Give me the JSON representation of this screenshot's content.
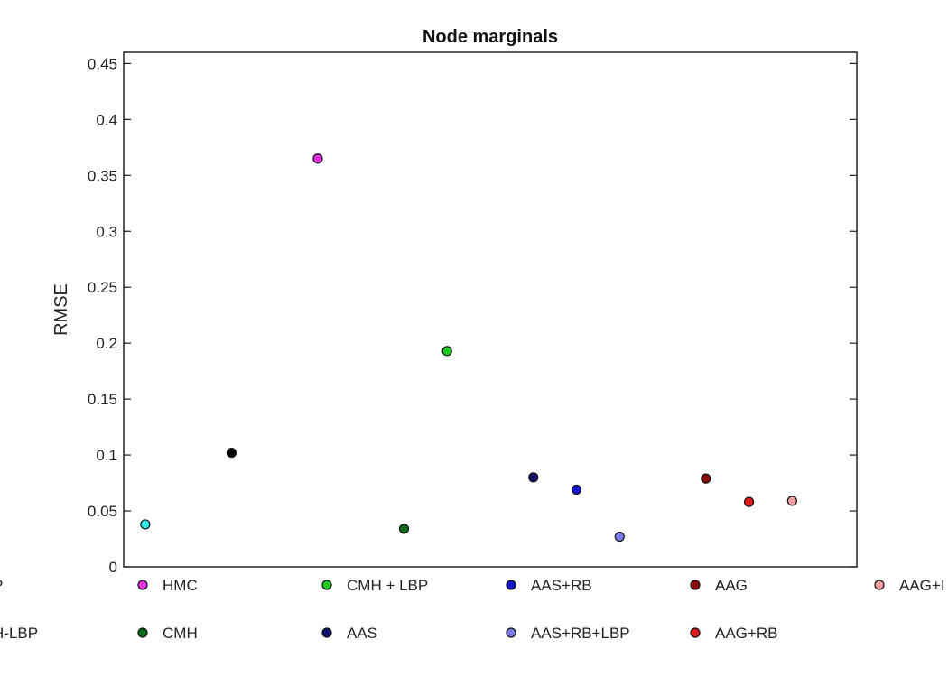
{
  "chart_data": {
    "type": "scatter",
    "title": "Node marginals",
    "xlabel": "",
    "ylabel": "RMSE",
    "ylim": [
      0,
      0.46
    ],
    "xlim": [
      -0.5,
      16.5
    ],
    "grid": false,
    "legend_placement": "bottom, clipped at left and right edges",
    "yticks": [
      "0",
      "0.05",
      "0.1",
      "0.15",
      "0.2",
      "0.25",
      "0.3",
      "0.35",
      "0.4",
      "0.45"
    ],
    "points": [
      {
        "x": 0,
        "y": 0.038,
        "color": "#33eeee"
      },
      {
        "x": 2,
        "y": 0.102,
        "color": "#000000"
      },
      {
        "x": 4,
        "y": 0.365,
        "color": "#e030e0"
      },
      {
        "x": 6,
        "y": 0.034,
        "color": "#0a6a1a"
      },
      {
        "x": 7,
        "y": 0.193,
        "color": "#1ec81e"
      },
      {
        "x": 9,
        "y": 0.08,
        "color": "#12126a"
      },
      {
        "x": 10,
        "y": 0.069,
        "color": "#1515cc"
      },
      {
        "x": 11,
        "y": 0.027,
        "color": "#7a7ae6"
      },
      {
        "x": 13,
        "y": 0.079,
        "color": "#8a0a0a"
      },
      {
        "x": 14,
        "y": 0.058,
        "color": "#e01818"
      },
      {
        "x": 15,
        "y": 0.059,
        "color": "#f0a0a0"
      }
    ],
    "legend": [
      {
        "label": "P",
        "color": "",
        "row": 0,
        "col": 0
      },
      {
        "label": "HMC",
        "color": "#e030e0",
        "row": 0,
        "col": 1
      },
      {
        "label": "CMH + LBP",
        "color": "#1ec81e",
        "row": 0,
        "col": 2
      },
      {
        "label": "AAS+RB",
        "color": "#1515cc",
        "row": 0,
        "col": 3
      },
      {
        "label": "AAG",
        "color": "#8a0a0a",
        "row": 0,
        "col": 4
      },
      {
        "label": "AAG+I",
        "color": "#f0a0a0",
        "row": 0,
        "col": 5
      },
      {
        "label": "H-LBP",
        "color": "",
        "row": 1,
        "col": 0
      },
      {
        "label": "CMH",
        "color": "#0a6a1a",
        "row": 1,
        "col": 1
      },
      {
        "label": "AAS",
        "color": "#12126a",
        "row": 1,
        "col": 2
      },
      {
        "label": "AAS+RB+LBP",
        "color": "#7a7ae6",
        "row": 1,
        "col": 3
      },
      {
        "label": "AAG+RB",
        "color": "#e01818",
        "row": 1,
        "col": 4
      }
    ]
  }
}
